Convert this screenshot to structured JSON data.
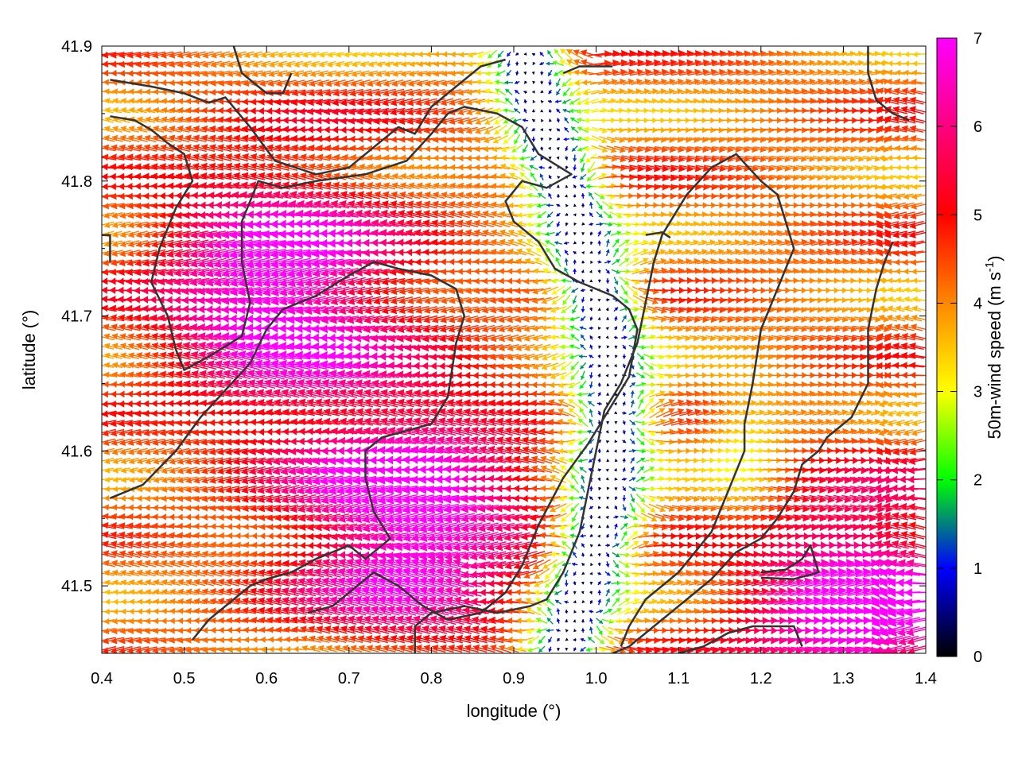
{
  "chart_data": {
    "type": "quiver",
    "title": "",
    "xlabel": "longitude (°)",
    "ylabel": "latitude (°)",
    "xlim": [
      0.4,
      1.4
    ],
    "ylim": [
      41.45,
      41.9
    ],
    "x_ticks": [
      "0.4",
      "0.5",
      "0.6",
      "0.7",
      "0.8",
      "0.9",
      "1.0",
      "1.1",
      "1.2",
      "1.3",
      "1.4"
    ],
    "y_ticks": [
      "41.5",
      "41.6",
      "41.7",
      "41.8",
      "41.9"
    ],
    "colorbar": {
      "label": "50m-wind speed (m s",
      "label_exponent": "-1",
      "label_close": ")",
      "range": [
        0,
        7
      ],
      "ticks": [
        "0",
        "1",
        "2",
        "3",
        "4",
        "5",
        "6",
        "7"
      ],
      "palette": [
        "#000000",
        "#0000ff",
        "#00ff00",
        "#ffff00",
        "#ff8800",
        "#ff0000",
        "#ff00ff"
      ]
    },
    "arrow_field_summary": {
      "grid_dx_deg": 0.01,
      "grid_dy_deg": 0.007,
      "dominant_direction": "westward (easterly wind)",
      "max_speed": 7,
      "calm_zone": {
        "lon_center": 0.96,
        "lon_halfwidth": 0.05,
        "lat_range": [
          41.45,
          41.9
        ],
        "min_speed": 0.2
      },
      "strong_zones": [
        {
          "lon": 0.62,
          "lat": 41.72,
          "speed": 7
        },
        {
          "lon": 0.78,
          "lat": 41.55,
          "speed": 7
        },
        {
          "lon": 1.32,
          "lat": 41.48,
          "speed": 7
        }
      ]
    },
    "contour_color": "#333333",
    "contours": [
      [
        [
          0.41,
          41.875
        ],
        [
          0.46,
          41.87
        ],
        [
          0.5,
          41.865
        ],
        [
          0.53,
          41.858
        ],
        [
          0.55,
          41.862
        ],
        [
          0.58,
          41.84
        ],
        [
          0.61,
          41.815
        ],
        [
          0.66,
          41.805
        ],
        [
          0.7,
          41.81
        ],
        [
          0.74,
          41.83
        ],
        [
          0.76,
          41.84
        ],
        [
          0.78,
          41.835
        ],
        [
          0.8,
          41.855
        ],
        [
          0.83,
          41.87
        ],
        [
          0.86,
          41.885
        ],
        [
          0.89,
          41.89
        ]
      ],
      [
        [
          0.56,
          41.9
        ],
        [
          0.57,
          41.88
        ],
        [
          0.6,
          41.865
        ],
        [
          0.62,
          41.865
        ],
        [
          0.63,
          41.88
        ]
      ],
      [
        [
          0.41,
          41.848
        ],
        [
          0.44,
          41.845
        ],
        [
          0.46,
          41.838
        ],
        [
          0.48,
          41.828
        ],
        [
          0.5,
          41.82
        ],
        [
          0.51,
          41.8
        ],
        [
          0.49,
          41.78
        ],
        [
          0.47,
          41.75
        ],
        [
          0.46,
          41.725
        ],
        [
          0.48,
          41.7
        ],
        [
          0.49,
          41.675
        ],
        [
          0.5,
          41.66
        ],
        [
          0.53,
          41.67
        ],
        [
          0.57,
          41.685
        ],
        [
          0.58,
          41.71
        ],
        [
          0.57,
          41.74
        ],
        [
          0.57,
          41.77
        ],
        [
          0.59,
          41.8
        ],
        [
          0.62,
          41.795
        ],
        [
          0.66,
          41.8
        ],
        [
          0.72,
          41.805
        ],
        [
          0.77,
          41.815
        ],
        [
          0.8,
          41.835
        ],
        [
          0.82,
          41.85
        ],
        [
          0.84,
          41.855
        ],
        [
          0.88,
          41.85
        ],
        [
          0.91,
          41.84
        ],
        [
          0.93,
          41.82
        ],
        [
          0.97,
          41.805
        ],
        [
          0.94,
          41.795
        ],
        [
          0.91,
          41.8
        ],
        [
          0.89,
          41.785
        ],
        [
          0.9,
          41.77
        ],
        [
          0.93,
          41.755
        ],
        [
          0.95,
          41.735
        ],
        [
          0.98,
          41.725
        ],
        [
          1.02,
          41.715
        ],
        [
          1.04,
          41.705
        ],
        [
          1.05,
          41.69
        ],
        [
          1.04,
          41.655
        ],
        [
          1.01,
          41.625
        ],
        [
          0.99,
          41.605
        ],
        [
          0.96,
          41.58
        ],
        [
          0.93,
          41.545
        ],
        [
          0.91,
          41.515
        ],
        [
          0.89,
          41.495
        ],
        [
          0.86,
          41.48
        ],
        [
          0.82,
          41.475
        ],
        [
          0.79,
          41.485
        ],
        [
          0.76,
          41.5
        ],
        [
          0.73,
          41.51
        ],
        [
          0.7,
          41.495
        ],
        [
          0.68,
          41.485
        ],
        [
          0.65,
          41.48
        ]
      ],
      [
        [
          0.41,
          41.565
        ],
        [
          0.45,
          41.575
        ],
        [
          0.49,
          41.6
        ],
        [
          0.52,
          41.625
        ],
        [
          0.55,
          41.645
        ],
        [
          0.58,
          41.665
        ],
        [
          0.6,
          41.69
        ],
        [
          0.62,
          41.705
        ],
        [
          0.66,
          41.715
        ],
        [
          0.7,
          41.73
        ],
        [
          0.73,
          41.74
        ],
        [
          0.76,
          41.735
        ],
        [
          0.8,
          41.73
        ],
        [
          0.83,
          41.72
        ],
        [
          0.84,
          41.7
        ],
        [
          0.83,
          41.68
        ],
        [
          0.82,
          41.64
        ],
        [
          0.8,
          41.62
        ],
        [
          0.77,
          41.615
        ],
        [
          0.74,
          41.61
        ],
        [
          0.72,
          41.6
        ],
        [
          0.72,
          41.58
        ],
        [
          0.73,
          41.555
        ],
        [
          0.75,
          41.535
        ],
        [
          0.72,
          41.52
        ],
        [
          0.7,
          41.53
        ],
        [
          0.66,
          41.52
        ],
        [
          0.63,
          41.51
        ],
        [
          0.6,
          41.505
        ],
        [
          0.58,
          41.5
        ],
        [
          0.56,
          41.49
        ],
        [
          0.53,
          41.475
        ],
        [
          0.51,
          41.46
        ]
      ],
      [
        [
          0.78,
          41.45
        ],
        [
          0.78,
          41.47
        ],
        [
          0.8,
          41.48
        ],
        [
          0.84,
          41.485
        ],
        [
          0.88,
          41.48
        ],
        [
          0.92,
          41.485
        ],
        [
          0.94,
          41.49
        ],
        [
          0.96,
          41.51
        ],
        [
          0.98,
          41.54
        ],
        [
          0.99,
          41.57
        ],
        [
          1.0,
          41.6
        ],
        [
          1.01,
          41.63
        ],
        [
          1.03,
          41.65
        ],
        [
          1.05,
          41.68
        ],
        [
          1.06,
          41.71
        ],
        [
          1.07,
          41.74
        ],
        [
          1.08,
          41.76
        ],
        [
          1.11,
          41.79
        ],
        [
          1.14,
          41.81
        ],
        [
          1.17,
          41.82
        ],
        [
          1.2,
          41.8
        ],
        [
          1.22,
          41.79
        ],
        [
          1.23,
          41.77
        ],
        [
          1.24,
          41.75
        ],
        [
          1.22,
          41.72
        ],
        [
          1.2,
          41.69
        ],
        [
          1.19,
          41.65
        ],
        [
          1.18,
          41.62
        ],
        [
          1.18,
          41.6
        ],
        [
          1.16,
          41.57
        ],
        [
          1.14,
          41.54
        ],
        [
          1.1,
          41.51
        ],
        [
          1.06,
          41.49
        ],
        [
          1.04,
          41.47
        ],
        [
          1.03,
          41.455
        ]
      ],
      [
        [
          1.36,
          41.755
        ],
        [
          1.35,
          41.74
        ],
        [
          1.34,
          41.72
        ],
        [
          1.33,
          41.69
        ],
        [
          1.33,
          41.65
        ],
        [
          1.31,
          41.625
        ],
        [
          1.28,
          41.61
        ],
        [
          1.27,
          41.6
        ],
        [
          1.25,
          41.59
        ],
        [
          1.24,
          41.57
        ],
        [
          1.22,
          41.55
        ],
        [
          1.2,
          41.535
        ],
        [
          1.17,
          41.525
        ],
        [
          1.14,
          41.505
        ],
        [
          1.11,
          41.49
        ],
        [
          1.08,
          41.475
        ],
        [
          1.06,
          41.465
        ],
        [
          1.04,
          41.455
        ],
        [
          1.02,
          41.45
        ]
      ],
      [
        [
          1.2,
          41.51
        ],
        [
          1.23,
          41.512
        ],
        [
          1.25,
          41.52
        ],
        [
          1.26,
          41.53
        ],
        [
          1.27,
          41.51
        ],
        [
          1.24,
          41.505
        ],
        [
          1.2,
          41.506
        ]
      ],
      [
        [
          1.1,
          41.45
        ],
        [
          1.13,
          41.455
        ],
        [
          1.16,
          41.465
        ],
        [
          1.19,
          41.47
        ],
        [
          1.22,
          41.47
        ],
        [
          1.24,
          41.47
        ],
        [
          1.25,
          41.455
        ]
      ],
      [
        [
          1.33,
          41.9
        ],
        [
          1.33,
          41.88
        ],
        [
          1.34,
          41.86
        ],
        [
          1.36,
          41.85
        ],
        [
          1.38,
          41.845
        ]
      ],
      [
        [
          0.4,
          41.76
        ],
        [
          0.41,
          41.76
        ],
        [
          0.41,
          41.74
        ]
      ],
      [
        [
          1.06,
          41.76
        ],
        [
          1.08,
          41.762
        ],
        [
          1.09,
          41.758
        ]
      ],
      [
        [
          0.96,
          41.88
        ],
        [
          0.98,
          41.885
        ],
        [
          1.02,
          41.885
        ]
      ]
    ]
  }
}
